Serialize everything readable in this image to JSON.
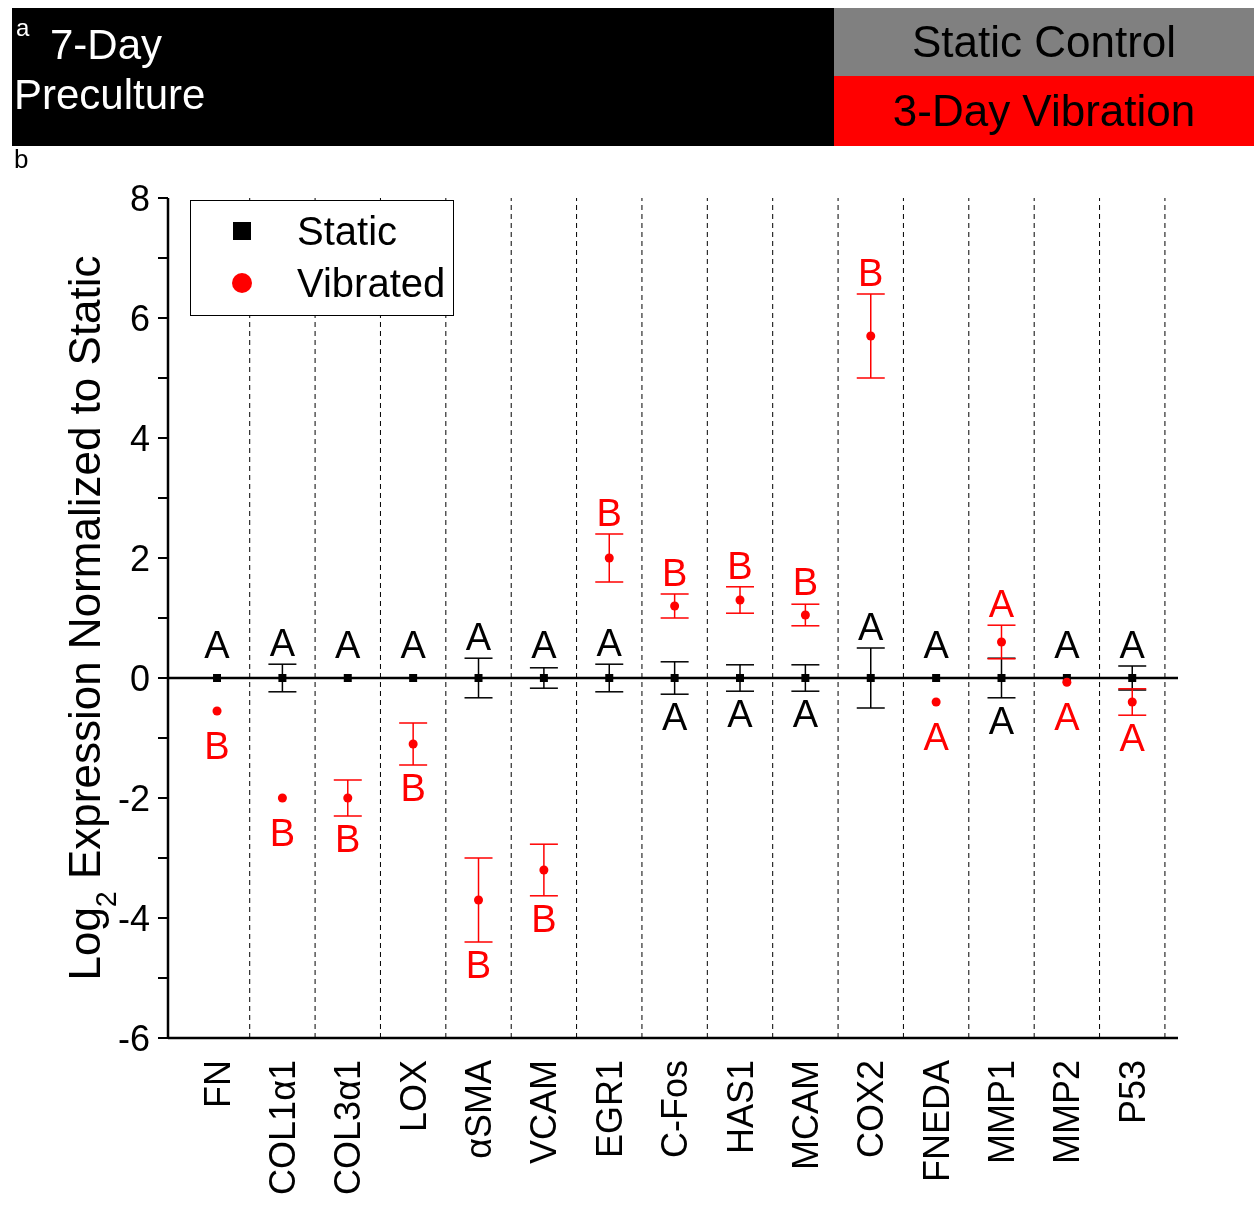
{
  "chart_data": {
    "type": "scatter",
    "annotations": [
      "a",
      "7-Day Preculture",
      "Static Control",
      "3-Day Vibration",
      "b"
    ],
    "ylabel": "Log$_{2}$ Expression Normalized to Static",
    "categories": [
      "FN",
      "COL1α1",
      "COL3α1",
      "LOX",
      "αSMA",
      "VCAM",
      "EGR1",
      "C-Fos",
      "HAS1",
      "MCAM",
      "COX2",
      "FNEDA",
      "MMP1",
      "MMP2",
      "P53"
    ],
    "series": [
      {
        "name": "Static",
        "color": "#000000",
        "marker": "square",
        "values": [
          0,
          0,
          0,
          0,
          0,
          0,
          0,
          0,
          0,
          0,
          0,
          0,
          0,
          0,
          0
        ],
        "errors": [
          null,
          0.23,
          null,
          null,
          0.33,
          0.17,
          0.23,
          0.27,
          0.22,
          0.22,
          0.5,
          null,
          0.33,
          null,
          0.2
        ],
        "value_labels": [
          "A",
          "A",
          "A",
          "A",
          "A",
          "A",
          "A",
          "A",
          "A",
          "A",
          "A",
          "A",
          "A",
          "A",
          "A"
        ]
      },
      {
        "name": "Vibrated",
        "color": "#ff0000",
        "marker": "circle",
        "values": [
          -0.55,
          -2.0,
          -2.0,
          -1.1,
          -3.7,
          -3.2,
          2.0,
          1.2,
          1.3,
          1.05,
          5.7,
          -0.4,
          0.6,
          -0.07,
          -0.4
        ],
        "errors": [
          null,
          null,
          0.3,
          0.35,
          0.7,
          0.43,
          0.4,
          0.2,
          0.22,
          0.18,
          0.7,
          null,
          0.28,
          null,
          0.22
        ],
        "value_labels": [
          "B",
          "B",
          "B",
          "B",
          "B",
          "B",
          "B",
          "B",
          "B",
          "B",
          "B",
          "A",
          "A",
          "A",
          "A"
        ]
      }
    ],
    "ylim": [
      -6,
      8
    ],
    "yticks": [
      -6,
      {
        "value": -5,
        "label": null
      },
      -4,
      {
        "value": -3,
        "label": null
      },
      -2,
      {
        "value": -1,
        "label": null
      },
      0,
      {
        "value": 1,
        "label": null
      },
      2,
      {
        "value": 3,
        "label": null
      },
      4,
      {
        "value": 5,
        "label": null
      },
      6,
      {
        "value": 7,
        "label": null
      },
      8
    ],
    "ref_lines": [
      {
        "axis": "y",
        "value": 0,
        "color": "#000000",
        "line_style": "solid"
      }
    ],
    "grid": "x",
    "legend": "top left"
  }
}
